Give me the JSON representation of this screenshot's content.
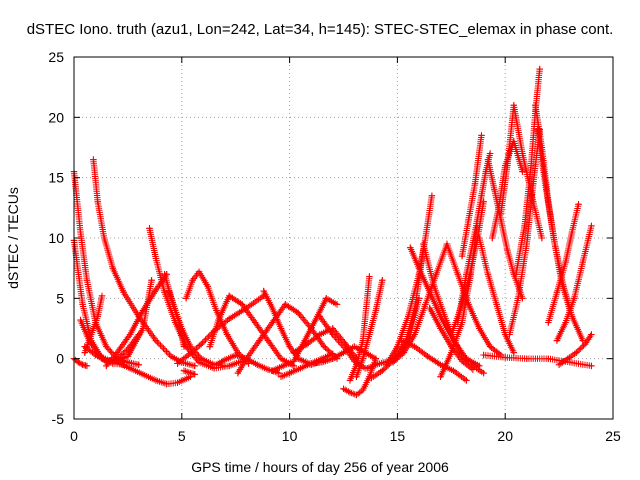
{
  "chart_data": {
    "type": "scatter",
    "title": "dSTEC Iono. truth (azu1, Lon=242, Lat=34, h=145): STEC-STEC_elemax in phase cont.",
    "xlabel": "GPS time / hours of day 256 of year 2006",
    "ylabel": "dSTEC  / TECUs",
    "xlim": [
      0,
      25
    ],
    "ylim": [
      -5,
      25
    ],
    "x_ticks": [
      0,
      5,
      10,
      15,
      20,
      25
    ],
    "y_ticks": [
      -5,
      0,
      5,
      10,
      15,
      20,
      25
    ],
    "grid": true,
    "marker": "+",
    "color": "#ff0000",
    "series": [
      {
        "x": [
          0.0,
          0.3,
          0.6,
          1.0,
          1.5,
          2.0,
          2.5,
          3.0
        ],
        "y": [
          15.5,
          10.5,
          6.5,
          3.0,
          1.0,
          0.0,
          -0.3,
          -0.5
        ]
      },
      {
        "x": [
          0.0,
          0.4,
          0.8,
          1.3,
          1.8,
          2.3
        ],
        "y": [
          9.8,
          4.5,
          1.5,
          0.0,
          -0.4,
          -0.5
        ]
      },
      {
        "x": [
          0.0,
          0.2,
          0.4,
          0.6
        ],
        "y": [
          0.0,
          -0.3,
          -0.5,
          -0.6
        ]
      },
      {
        "x": [
          0.3,
          0.7,
          1.2,
          1.8,
          2.5,
          3.2,
          3.6
        ],
        "y": [
          3.2,
          1.5,
          0.2,
          -0.3,
          0.2,
          2.5,
          6.5
        ]
      },
      {
        "x": [
          0.9,
          1.1,
          1.4,
          1.8,
          2.3,
          3.0,
          3.8,
          4.5,
          5.0,
          5.6
        ],
        "y": [
          16.5,
          13.0,
          10.0,
          7.5,
          5.5,
          3.5,
          1.5,
          0.2,
          -0.3,
          -0.6
        ]
      },
      {
        "x": [
          0.5,
          0.8,
          1.1,
          1.3
        ],
        "y": [
          0.5,
          2.0,
          3.5,
          5.2
        ]
      },
      {
        "x": [
          0.5,
          1.0,
          1.5,
          2.0,
          2.5,
          3.0
        ],
        "y": [
          1.0,
          0.3,
          -0.2,
          0.0,
          0.8,
          2.0
        ]
      },
      {
        "x": [
          1.5,
          2.0,
          2.6,
          3.2,
          3.8,
          4.3
        ],
        "y": [
          -0.6,
          0.5,
          2.0,
          4.0,
          5.7,
          7.0
        ]
      },
      {
        "x": [
          2.0,
          2.6,
          3.2,
          3.8,
          4.3,
          4.8,
          5.4
        ],
        "y": [
          -0.3,
          -0.8,
          -1.3,
          -1.8,
          -2.1,
          -2.0,
          -1.5
        ]
      },
      {
        "x": [
          3.5,
          3.8,
          4.2,
          4.7,
          5.2,
          5.8,
          6.5,
          7.2,
          7.8
        ],
        "y": [
          10.8,
          8.3,
          5.5,
          3.0,
          1.0,
          -0.3,
          -0.8,
          -0.6,
          -0.2
        ]
      },
      {
        "x": [
          4.2,
          4.6,
          5.0,
          5.4,
          5.9,
          6.5,
          7.0
        ],
        "y": [
          7.0,
          4.5,
          2.5,
          1.0,
          0.0,
          -0.5,
          -0.6
        ]
      },
      {
        "x": [
          4.4,
          4.7,
          4.9,
          5.1
        ],
        "y": [
          5.6,
          4.0,
          2.8,
          1.0
        ]
      },
      {
        "x": [
          4.8,
          5.3,
          5.9,
          6.5,
          7.2,
          8.0,
          8.8
        ],
        "y": [
          -0.4,
          0.3,
          1.2,
          2.3,
          3.3,
          4.2,
          5.2
        ]
      },
      {
        "x": [
          5.1,
          5.4,
          5.6
        ],
        "y": [
          -1.0,
          -1.2,
          -1.3
        ]
      },
      {
        "x": [
          5.2,
          5.5,
          5.8,
          6.2,
          6.6,
          7.1,
          7.6,
          8.1
        ],
        "y": [
          5.0,
          6.5,
          7.2,
          6.0,
          4.0,
          2.0,
          0.5,
          -0.4
        ]
      },
      {
        "x": [
          6.3,
          6.7,
          7.2,
          7.8,
          8.4,
          9.0,
          9.6,
          10.2
        ],
        "y": [
          1.0,
          3.2,
          5.2,
          4.5,
          3.0,
          1.5,
          0.0,
          -0.6
        ]
      },
      {
        "x": [
          6.6,
          7.0,
          7.5,
          8.0,
          8.5,
          9.0,
          9.5
        ],
        "y": [
          -0.5,
          -0.1,
          0.3,
          0.0,
          -0.5,
          -0.9,
          -1.2
        ]
      },
      {
        "x": [
          7.6,
          8.0,
          8.6,
          9.2,
          9.8,
          10.4,
          11.0,
          11.6,
          12.2
        ],
        "y": [
          -1.2,
          0.0,
          1.5,
          3.0,
          4.5,
          3.8,
          2.5,
          1.0,
          0.0
        ]
      },
      {
        "x": [
          8.8,
          9.2,
          9.6,
          10.0,
          10.4,
          10.9,
          11.5,
          12.0
        ],
        "y": [
          5.6,
          4.2,
          2.5,
          1.0,
          0.0,
          -0.4,
          -0.3,
          0.0
        ]
      },
      {
        "x": [
          9.2,
          9.7,
          10.2,
          10.7,
          11.2,
          11.7,
          12.2
        ],
        "y": [
          -1.0,
          -0.6,
          -0.2,
          1.5,
          3.2,
          5.0,
          4.5
        ]
      },
      {
        "x": [
          9.6,
          10.0,
          10.5,
          11.0,
          11.5,
          12.0
        ],
        "y": [
          -1.5,
          -1.2,
          -0.8,
          -0.4,
          0.0,
          0.4
        ]
      },
      {
        "x": [
          10.2,
          10.8,
          11.4,
          12.0,
          12.6,
          13.1
        ],
        "y": [
          0.5,
          1.2,
          2.0,
          2.5,
          1.2,
          0.0
        ]
      },
      {
        "x": [
          11.0,
          11.5,
          12.0,
          12.5,
          13.0,
          13.5,
          14.0
        ],
        "y": [
          -0.5,
          -0.2,
          0.0,
          0.5,
          1.0,
          0.5,
          0.0
        ]
      },
      {
        "x": [
          11.4,
          12.0,
          12.6,
          13.0,
          13.5
        ],
        "y": [
          3.5,
          2.0,
          0.8,
          -0.2,
          -0.8
        ]
      },
      {
        "x": [
          12.5,
          12.8,
          13.1,
          13.4,
          13.7,
          14.0
        ],
        "y": [
          -2.5,
          -2.8,
          -3.0,
          -2.6,
          -1.5,
          0.0
        ]
      },
      {
        "x": [
          12.8,
          13.1,
          13.4,
          13.7
        ],
        "y": [
          -1.8,
          -0.5,
          1.5,
          6.8
        ]
      },
      {
        "x": [
          13.1,
          13.4,
          13.7,
          14.0,
          14.3
        ],
        "y": [
          -1.5,
          0.0,
          2.0,
          4.0,
          6.5
        ]
      },
      {
        "x": [
          13.6,
          14.0,
          14.6,
          15.2,
          15.6,
          16.0
        ],
        "y": [
          -0.8,
          -0.5,
          -0.2,
          0.5,
          2.0,
          5.0
        ]
      },
      {
        "x": [
          13.8,
          14.3,
          14.9,
          15.4,
          15.8,
          16.2
        ],
        "y": [
          -1.6,
          -1.0,
          0.0,
          1.5,
          4.0,
          9.0
        ]
      },
      {
        "x": [
          14.5,
          15.0,
          15.5,
          16.0,
          16.3,
          16.6
        ],
        "y": [
          -0.5,
          1.0,
          3.5,
          7.0,
          10.0,
          13.5
        ]
      },
      {
        "x": [
          14.8,
          15.3,
          15.8,
          16.3,
          16.8,
          17.3
        ],
        "y": [
          -0.3,
          0.5,
          2.0,
          4.5,
          7.0,
          9.5
        ]
      },
      {
        "x": [
          15.2,
          15.8,
          16.4,
          17.0,
          17.6,
          18.2
        ],
        "y": [
          1.5,
          1.0,
          0.2,
          -0.5,
          -1.0,
          -1.8
        ]
      },
      {
        "x": [
          15.6,
          16.0,
          16.5,
          17.0,
          17.6,
          18.2,
          18.8
        ],
        "y": [
          9.2,
          7.5,
          5.5,
          3.5,
          1.5,
          0.0,
          -0.6
        ]
      },
      {
        "x": [
          16.2,
          16.7,
          17.3,
          17.9,
          18.5,
          19.0
        ],
        "y": [
          9.5,
          6.0,
          3.0,
          0.5,
          -0.6,
          -1.2
        ]
      },
      {
        "x": [
          16.5,
          17.0,
          17.5,
          18.0,
          18.5
        ],
        "y": [
          4.2,
          2.5,
          1.0,
          -0.2,
          -0.9
        ]
      },
      {
        "x": [
          17.0,
          17.5,
          18.0,
          18.4,
          18.7
        ],
        "y": [
          -1.5,
          0.5,
          3.0,
          7.0,
          11.0
        ]
      },
      {
        "x": [
          17.3,
          17.8,
          18.3,
          18.8,
          19.3,
          19.8
        ],
        "y": [
          9.5,
          7.0,
          4.5,
          2.5,
          1.0,
          0.3
        ]
      },
      {
        "x": [
          17.5,
          17.9,
          18.3,
          18.7,
          19.0
        ],
        "y": [
          2.0,
          4.0,
          6.5,
          9.8,
          13.0
        ]
      },
      {
        "x": [
          17.8,
          18.2,
          18.6,
          18.9,
          19.1,
          19.3
        ],
        "y": [
          3.0,
          7.0,
          10.5,
          13.5,
          15.5,
          17.0
        ]
      },
      {
        "x": [
          18.0,
          18.3,
          18.6,
          18.9
        ],
        "y": [
          8.5,
          11.5,
          14.5,
          18.5
        ]
      },
      {
        "x": [
          18.8,
          19.2,
          19.6,
          20.0,
          20.4
        ],
        "y": [
          10.0,
          7.0,
          4.5,
          2.0,
          0.5
        ]
      },
      {
        "x": [
          19.2,
          19.5,
          19.8,
          20.1,
          20.4,
          20.8
        ],
        "y": [
          16.5,
          14.0,
          11.5,
          9.0,
          7.0,
          5.0
        ]
      },
      {
        "x": [
          19.4,
          19.7,
          20.0,
          20.4,
          20.8
        ],
        "y": [
          10.0,
          12.5,
          16.0,
          18.0,
          15.5
        ]
      },
      {
        "x": [
          19.8,
          20.1,
          20.4,
          20.8,
          21.3,
          21.7
        ],
        "y": [
          12.0,
          16.0,
          21.0,
          17.0,
          13.0,
          10.0
        ]
      },
      {
        "x": [
          20.2,
          20.6,
          21.0,
          21.3,
          21.6
        ],
        "y": [
          2.0,
          5.0,
          9.5,
          14.5,
          19.0
        ]
      },
      {
        "x": [
          20.5,
          20.9,
          21.2,
          21.4,
          21.6
        ],
        "y": [
          7.0,
          11.0,
          16.0,
          20.5,
          24.0
        ]
      },
      {
        "x": [
          21.4,
          21.7,
          22.0,
          22.3,
          22.6,
          23.0
        ],
        "y": [
          21.0,
          17.5,
          13.0,
          9.5,
          6.5,
          4.0
        ]
      },
      {
        "x": [
          21.5,
          21.9,
          22.3,
          22.7,
          23.1,
          23.6
        ],
        "y": [
          19.0,
          14.0,
          9.5,
          6.0,
          3.5,
          1.5
        ]
      },
      {
        "x": [
          22.0,
          22.4,
          22.8,
          23.1,
          23.4
        ],
        "y": [
          3.0,
          5.5,
          8.0,
          10.5,
          12.8
        ]
      },
      {
        "x": [
          22.4,
          22.8,
          23.2,
          23.6,
          24.0
        ],
        "y": [
          1.5,
          3.0,
          5.0,
          8.0,
          11.0
        ]
      },
      {
        "x": [
          22.5,
          22.9,
          23.3,
          23.7,
          24.0
        ],
        "y": [
          -0.5,
          0.0,
          0.5,
          1.2,
          2.0
        ]
      },
      {
        "x": [
          19.0,
          20.0,
          21.0,
          22.0,
          23.0,
          24.0
        ],
        "y": [
          0.3,
          0.1,
          0.0,
          0.0,
          -0.3,
          -0.6
        ]
      }
    ]
  }
}
